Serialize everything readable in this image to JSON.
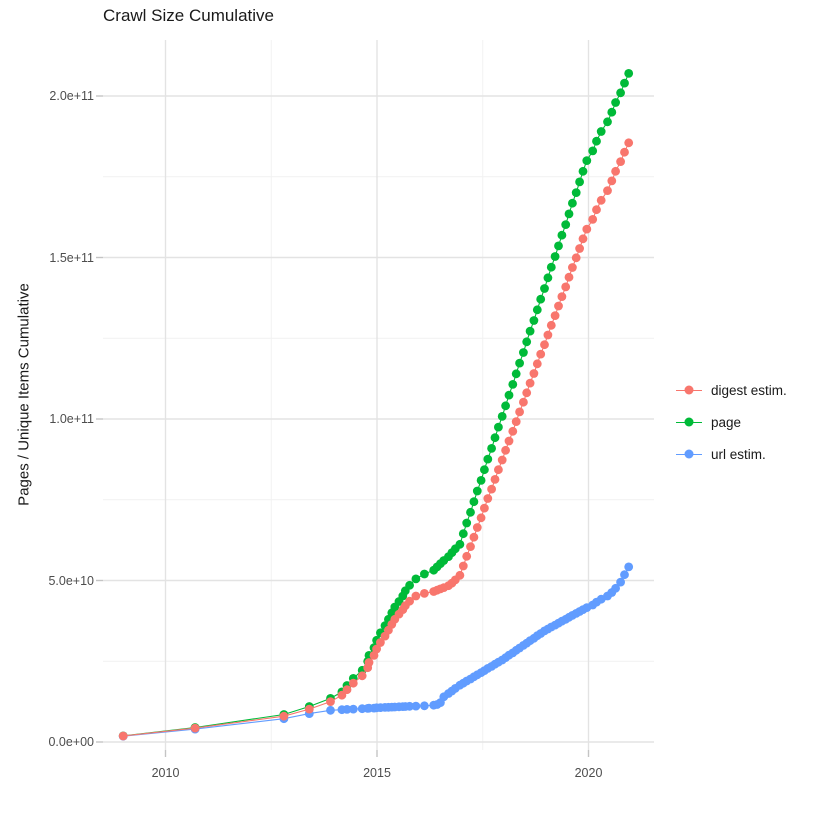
{
  "chart_data": {
    "type": "scatter",
    "title": "Crawl Size Cumulative",
    "xlabel": "",
    "ylabel": "Pages / Unique Items Cumulative",
    "legend_position": "right",
    "grid": "on",
    "background": "#ffffff",
    "gridline_major_color": "#e3e3e3",
    "gridline_minor_color": "#f1f1f1",
    "tick_color": "#c4c4c4",
    "tick_label_color": "#4d4d4d",
    "xlim": [
      2008.5,
      2021.6
    ],
    "ylim": [
      0,
      217000000000.0
    ],
    "x_axis": {
      "major_ticks": [
        {
          "value": 2010,
          "label": "2010"
        },
        {
          "value": 2015,
          "label": "2015"
        },
        {
          "value": 2020,
          "label": "2020"
        }
      ],
      "minor_ticks": [
        2012.5,
        2017.5
      ]
    },
    "y_axis": {
      "major_ticks": [
        {
          "value_e10": 0,
          "label": "0.0e+00"
        },
        {
          "value_e10": 5,
          "label": "5.0e+10"
        },
        {
          "value_e10": 10,
          "label": "1.0e+11"
        },
        {
          "value_e10": 15,
          "label": "1.5e+11"
        },
        {
          "value_e10": 20,
          "label": "2.0e+11"
        }
      ],
      "minor_ticks_e10": [
        2.5,
        7.5,
        12.5,
        17.5
      ]
    },
    "series": [
      {
        "name": "digest estim.",
        "key": "digest",
        "color": "#F8766D",
        "col": 2
      },
      {
        "name": "page",
        "key": "page",
        "color": "#00BA38",
        "col": 1
      },
      {
        "name": "url estim.",
        "key": "url",
        "color": "#619CFF",
        "col": 3
      }
    ],
    "draw_order_cols": [
      1,
      3,
      2
    ],
    "unit": "values are cumulative counts in units of 1e10",
    "points_format": [
      "year_decimal",
      "page_e10",
      "digest_e10",
      "url_e10"
    ],
    "points": [
      [
        2009.0,
        0.19,
        0.185,
        0.18
      ],
      [
        2010.7,
        0.45,
        0.43,
        0.4
      ],
      [
        2012.8,
        0.85,
        0.8,
        0.72
      ],
      [
        2013.4,
        1.1,
        1.02,
        0.88
      ],
      [
        2013.9,
        1.35,
        1.25,
        0.98
      ],
      [
        2014.17,
        1.55,
        1.45,
        1.0
      ],
      [
        2014.29,
        1.75,
        1.62,
        1.01
      ],
      [
        2014.44,
        1.97,
        1.82,
        1.02
      ],
      [
        2014.65,
        2.22,
        2.05,
        1.03
      ],
      [
        2014.78,
        2.5,
        2.3,
        1.04
      ],
      [
        2014.81,
        2.68,
        2.46,
        1.045
      ],
      [
        2014.93,
        2.92,
        2.68,
        1.05
      ],
      [
        2014.99,
        3.15,
        2.88,
        1.06
      ],
      [
        2015.08,
        3.38,
        3.08,
        1.065
      ],
      [
        2015.19,
        3.6,
        3.28,
        1.07
      ],
      [
        2015.27,
        3.8,
        3.46,
        1.075
      ],
      [
        2015.35,
        4.0,
        3.64,
        1.08
      ],
      [
        2015.42,
        4.18,
        3.8,
        1.085
      ],
      [
        2015.52,
        4.35,
        3.96,
        1.09
      ],
      [
        2015.61,
        4.52,
        4.1,
        1.095
      ],
      [
        2015.67,
        4.68,
        4.22,
        1.1
      ],
      [
        2015.77,
        4.85,
        4.36,
        1.105
      ],
      [
        2015.92,
        5.05,
        4.52,
        1.11
      ],
      [
        2016.12,
        5.2,
        4.6,
        1.12
      ],
      [
        2016.34,
        5.32,
        4.66,
        1.14
      ],
      [
        2016.42,
        5.42,
        4.7,
        1.16
      ],
      [
        2016.5,
        5.52,
        4.74,
        1.22
      ],
      [
        2016.58,
        5.62,
        4.78,
        1.4
      ],
      [
        2016.69,
        5.74,
        4.84,
        1.5
      ],
      [
        2016.77,
        5.86,
        4.92,
        1.58
      ],
      [
        2016.85,
        5.98,
        5.02,
        1.66
      ],
      [
        2016.96,
        6.12,
        5.16,
        1.76
      ],
      [
        2017.04,
        6.45,
        5.45,
        1.82
      ],
      [
        2017.12,
        6.78,
        5.75,
        1.89
      ],
      [
        2017.21,
        7.11,
        6.05,
        1.95
      ],
      [
        2017.29,
        7.44,
        6.34,
        2.02
      ],
      [
        2017.37,
        7.77,
        6.64,
        2.08
      ],
      [
        2017.46,
        8.1,
        6.94,
        2.15
      ],
      [
        2017.54,
        8.43,
        7.24,
        2.21
      ],
      [
        2017.62,
        8.76,
        7.54,
        2.28
      ],
      [
        2017.71,
        9.09,
        7.83,
        2.34
      ],
      [
        2017.79,
        9.42,
        8.13,
        2.41
      ],
      [
        2017.87,
        9.75,
        8.43,
        2.47
      ],
      [
        2017.96,
        10.08,
        8.73,
        2.54
      ],
      [
        2018.04,
        10.41,
        9.03,
        2.61
      ],
      [
        2018.12,
        10.74,
        9.32,
        2.69
      ],
      [
        2018.21,
        11.07,
        9.62,
        2.76
      ],
      [
        2018.29,
        11.4,
        9.92,
        2.84
      ],
      [
        2018.37,
        11.73,
        10.22,
        2.91
      ],
      [
        2018.46,
        12.06,
        10.52,
        2.99
      ],
      [
        2018.54,
        12.39,
        10.81,
        3.06
      ],
      [
        2018.62,
        12.72,
        11.11,
        3.14
      ],
      [
        2018.71,
        13.05,
        11.41,
        3.21
      ],
      [
        2018.79,
        13.38,
        11.71,
        3.29
      ],
      [
        2018.87,
        13.71,
        12.01,
        3.36
      ],
      [
        2018.96,
        14.04,
        12.3,
        3.44
      ],
      [
        2019.04,
        14.37,
        12.6,
        3.5
      ],
      [
        2019.12,
        14.7,
        12.9,
        3.56
      ],
      [
        2019.21,
        15.03,
        13.2,
        3.62
      ],
      [
        2019.29,
        15.36,
        13.5,
        3.68
      ],
      [
        2019.37,
        15.69,
        13.79,
        3.74
      ],
      [
        2019.46,
        16.02,
        14.09,
        3.8
      ],
      [
        2019.54,
        16.35,
        14.39,
        3.86
      ],
      [
        2019.62,
        16.68,
        14.69,
        3.92
      ],
      [
        2019.71,
        17.01,
        14.99,
        3.98
      ],
      [
        2019.79,
        17.34,
        15.28,
        4.04
      ],
      [
        2019.87,
        17.67,
        15.58,
        4.1
      ],
      [
        2019.96,
        18.0,
        15.88,
        4.16
      ],
      [
        2020.1,
        18.3,
        16.18,
        4.24
      ],
      [
        2020.19,
        18.6,
        16.48,
        4.33
      ],
      [
        2020.3,
        18.9,
        16.77,
        4.42
      ],
      [
        2020.45,
        19.2,
        17.07,
        4.52
      ],
      [
        2020.55,
        19.5,
        17.37,
        4.63
      ],
      [
        2020.64,
        19.8,
        17.67,
        4.76
      ],
      [
        2020.76,
        20.1,
        17.97,
        4.95
      ],
      [
        2020.85,
        20.4,
        18.26,
        5.18
      ],
      [
        2020.95,
        20.7,
        18.55,
        5.42
      ]
    ]
  },
  "legend": {
    "items": [
      {
        "label": "digest estim."
      },
      {
        "label": "page"
      },
      {
        "label": "url estim."
      }
    ]
  }
}
